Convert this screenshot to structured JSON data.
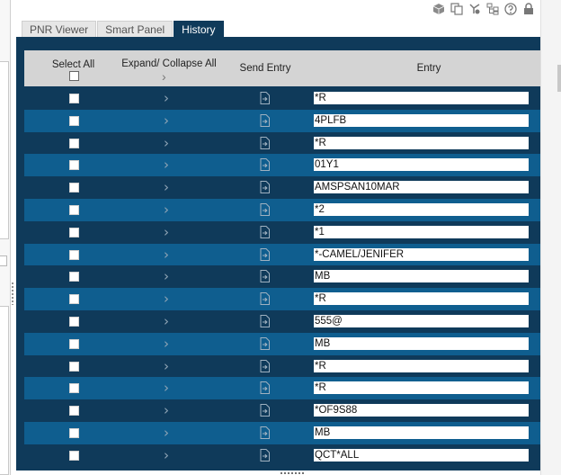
{
  "toolbar": {
    "icons": [
      "package-icon",
      "copy-icon",
      "branch-icon",
      "hierarchy-icon",
      "help-icon",
      "lock-icon",
      "wrench-icon"
    ]
  },
  "tabs": [
    {
      "label": "PNR Viewer",
      "active": false
    },
    {
      "label": "Smart Panel",
      "active": false
    },
    {
      "label": "History",
      "active": true
    }
  ],
  "table": {
    "headers": {
      "select_all": "Select All",
      "expand_collapse": "Expand/ Collapse All",
      "send_entry": "Send Entry",
      "entry": "Entry"
    },
    "rows": [
      {
        "entry": "*R"
      },
      {
        "entry": "4PLFB"
      },
      {
        "entry": "*R"
      },
      {
        "entry": "01Y1"
      },
      {
        "entry": "AMSPSAN10MAR"
      },
      {
        "entry": "*2"
      },
      {
        "entry": "*1"
      },
      {
        "entry": "*-CAMEL/JENIFER"
      },
      {
        "entry": "MB"
      },
      {
        "entry": "*R"
      },
      {
        "entry": "555@"
      },
      {
        "entry": "MB"
      },
      {
        "entry": "*R"
      },
      {
        "entry": "*R"
      },
      {
        "entry": "*OF9S88"
      },
      {
        "entry": "MB"
      },
      {
        "entry": "QCT*ALL"
      }
    ]
  },
  "colors": {
    "panel_bg": "#0f3a5a",
    "row_light": "#0f5e8f",
    "header_bg": "#d4d4d4"
  }
}
